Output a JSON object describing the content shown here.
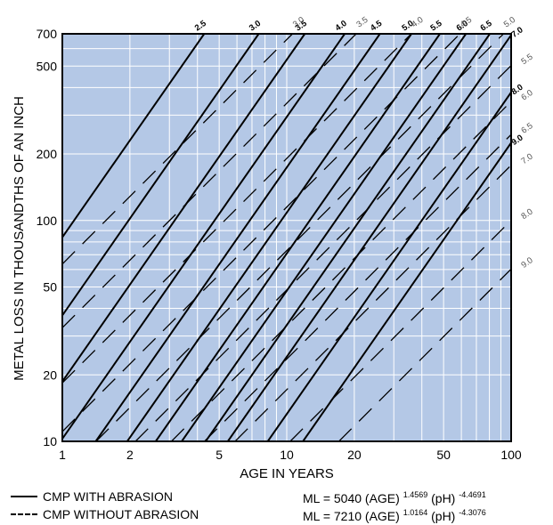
{
  "chart_data": {
    "type": "line",
    "x_scale": "log",
    "y_scale": "log",
    "xlim": [
      1,
      100
    ],
    "ylim": [
      10,
      700
    ],
    "grid": true,
    "xlabel": "AGE IN YEARS",
    "ylabel": "METAL LOSS IN THOUSANDTHS OF AN INCH",
    "x_ticks": [
      1,
      2,
      5,
      10,
      20,
      50,
      100
    ],
    "x_tick_labels": [
      "1",
      "2",
      "5",
      "10",
      "20",
      "50",
      "100"
    ],
    "y_ticks": [
      10,
      20,
      50,
      100,
      200,
      500,
      700
    ],
    "y_tick_labels": [
      "10",
      "20",
      "50",
      "100",
      "200",
      "500",
      "700"
    ],
    "series": [
      {
        "name": "CMP WITH ABRASION",
        "style": "solid",
        "formula": {
          "coef": 5040,
          "age_exp": 1.4569,
          "ph_exp": -4.4691
        },
        "curves": [
          {
            "pH": 2.5,
            "label": "2.5"
          },
          {
            "pH": 3.0,
            "label": "3.0"
          },
          {
            "pH": 3.5,
            "label": "3.5"
          },
          {
            "pH": 4.0,
            "label": "4.0"
          },
          {
            "pH": 4.5,
            "label": "4.5"
          },
          {
            "pH": 5.0,
            "label": "5.0"
          },
          {
            "pH": 5.5,
            "label": "5.5"
          },
          {
            "pH": 6.0,
            "label": "6.0"
          },
          {
            "pH": 6.5,
            "label": "6.5"
          },
          {
            "pH": 7.0,
            "label": "7.0"
          },
          {
            "pH": 8.0,
            "label": "8.0"
          },
          {
            "pH": 9.0,
            "label": "9.0"
          }
        ]
      },
      {
        "name": "CMP WITHOUT ABRASION",
        "style": "dashed",
        "formula": {
          "coef": 7210,
          "age_exp": 1.0164,
          "ph_exp": -4.3076
        },
        "curves": [
          {
            "pH": 3.0,
            "label": "3.0"
          },
          {
            "pH": 3.5,
            "label": "3.5"
          },
          {
            "pH": 4.0,
            "label": "4.0"
          },
          {
            "pH": 4.5,
            "label": "4.5"
          },
          {
            "pH": 5.0,
            "label": "5.0"
          },
          {
            "pH": 5.5,
            "label": "5.5"
          },
          {
            "pH": 6.0,
            "label": "6.0"
          },
          {
            "pH": 6.5,
            "label": "6.5"
          },
          {
            "pH": 7.0,
            "label": "7.0"
          },
          {
            "pH": 8.0,
            "label": "8.0"
          },
          {
            "pH": 9.0,
            "label": "9.0"
          }
        ]
      }
    ],
    "colors": {
      "plot_background": "#b4c8e6",
      "grid": "#ffffff",
      "lines": "#000000",
      "dashed_label": "#555555"
    }
  },
  "legend": {
    "solid_label": "CMP WITH ABRASION",
    "dashed_label": "CMP WITHOUT ABRASION"
  },
  "formulas": {
    "with_abrasion": {
      "lhs": "ML = 5040 (AGE)",
      "age_exp": "1.4569",
      "mid": " (pH)",
      "ph_exp": "-4.4691"
    },
    "without_abrasion": {
      "lhs": "ML = 7210 (AGE)",
      "age_exp": "1.0164",
      "mid": " (pH)",
      "ph_exp": "-4.3076"
    }
  }
}
